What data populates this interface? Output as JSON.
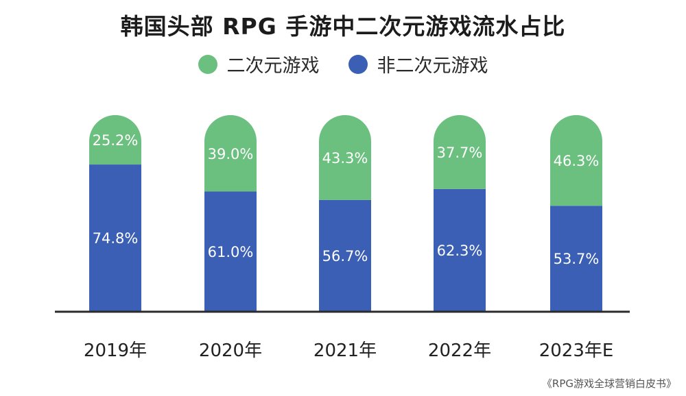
{
  "chart_data": {
    "type": "bar",
    "stacked": true,
    "title": "韩国头部 RPG 手游中二次元游戏流水占比",
    "categories": [
      "2019年",
      "2020年",
      "2021年",
      "2022年",
      "2023年E"
    ],
    "series": [
      {
        "name": "二次元游戏",
        "color": "#6cc07f",
        "values": [
          25.2,
          39.0,
          43.3,
          37.7,
          46.3
        ],
        "labels": [
          "25.2%",
          "39.0%",
          "43.3%",
          "37.7%",
          "46.3%"
        ]
      },
      {
        "name": "非二次元游戏",
        "color": "#3a5fb4",
        "values": [
          74.8,
          61.0,
          56.7,
          62.3,
          53.7
        ],
        "labels": [
          "74.8%",
          "61.0%",
          "56.7%",
          "62.3%",
          "53.7%"
        ]
      }
    ],
    "ylim": [
      0,
      100
    ],
    "grid": false,
    "legend_position": "top-center"
  },
  "source": "《RPG游戏全球营销白皮书》"
}
